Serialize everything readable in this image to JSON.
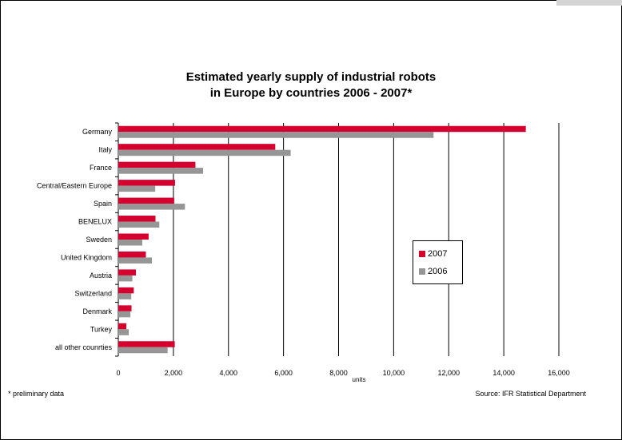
{
  "chart_data": {
    "type": "bar",
    "orientation": "horizontal",
    "title_line1": "Estimated yearly supply of industrial robots",
    "title_line2": "in Europe by countries 2006 - 2007*",
    "xlabel": "units",
    "ylabel": "",
    "xlim": [
      0,
      16000
    ],
    "x_ticks": [
      "0",
      "2,000",
      "4,000",
      "6,000",
      "8,000",
      "10,000",
      "12,000",
      "14,000",
      "16,000"
    ],
    "x_tick_values": [
      0,
      2000,
      4000,
      6000,
      8000,
      10000,
      12000,
      14000,
      16000
    ],
    "grid": "vertical",
    "legend_position": "right",
    "categories": [
      "Germany",
      "Italy",
      "France",
      "Central/Eastern Europe",
      "Spain",
      "BENELUX",
      "Sweden",
      "United Kingdom",
      "Austria",
      "Switzerland",
      "Denmark",
      "Turkey",
      "all other counrties"
    ],
    "series": [
      {
        "name": "2007",
        "color": "#d4002e",
        "values": [
          14800,
          5700,
          2800,
          2060,
          2030,
          1350,
          1100,
          1000,
          640,
          560,
          480,
          290,
          2050
        ]
      },
      {
        "name": "2006",
        "color": "#969696",
        "values": [
          11450,
          6260,
          3080,
          1340,
          2420,
          1490,
          870,
          1220,
          510,
          470,
          440,
          380,
          1790
        ]
      }
    ]
  },
  "footnote": "* preliminary data",
  "source": "Source: IFR Statistical Department"
}
